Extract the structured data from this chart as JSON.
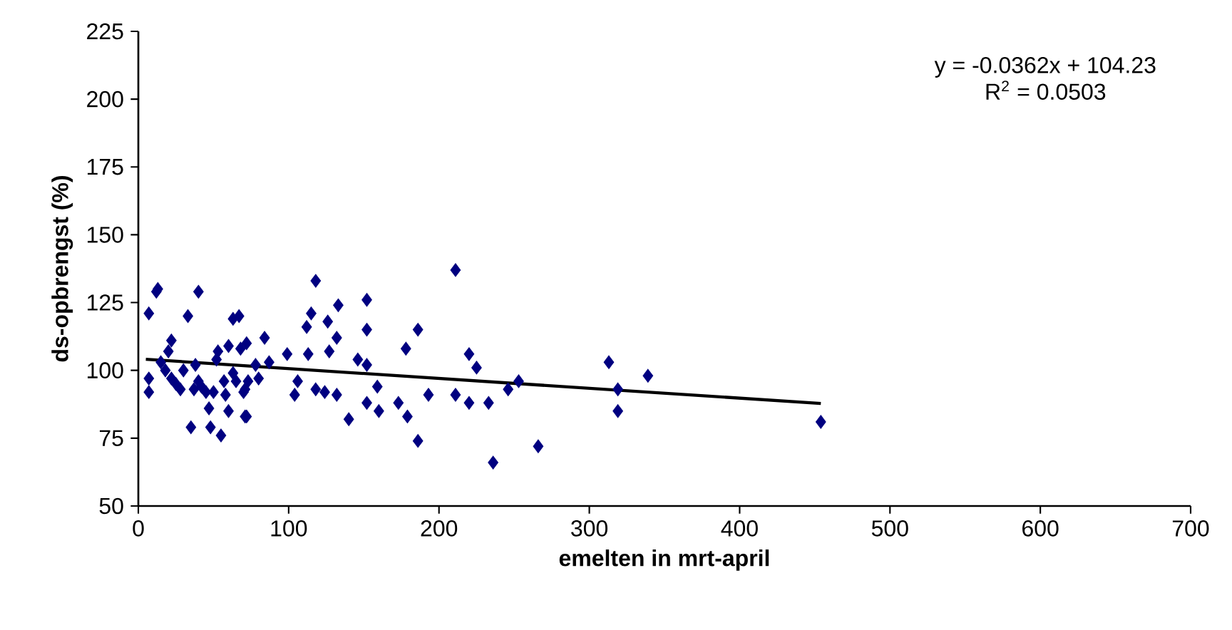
{
  "chart_data": {
    "type": "scatter",
    "xlabel": "emelten in mrt-april",
    "ylabel": "ds-opbrengst (%)",
    "xlim": [
      0,
      700
    ],
    "ylim": [
      50,
      225
    ],
    "xticks": [
      0,
      100,
      200,
      300,
      400,
      500,
      600,
      700
    ],
    "yticks": [
      50,
      75,
      100,
      125,
      150,
      175,
      200,
      225
    ],
    "grid": false,
    "marker": "diamond",
    "annotations": [
      "y = -0.0362x + 104.23",
      "R$^{2}$ = 0.0503"
    ],
    "series": [
      {
        "color": "#000080",
        "x": [
          7,
          7,
          7,
          12,
          13,
          15,
          18,
          20,
          22,
          22,
          25,
          28,
          30,
          33,
          35,
          37,
          38,
          40,
          40,
          42,
          45,
          47,
          48,
          50,
          52,
          53,
          55,
          57,
          58,
          60,
          60,
          63,
          63,
          65,
          67,
          68,
          70,
          72,
          72,
          73,
          78,
          80,
          118,
          133,
          152,
          115,
          126,
          112,
          152,
          186,
          84,
          132,
          99,
          113,
          127,
          178,
          146,
          152,
          87,
          106,
          118,
          124,
          132,
          104,
          159,
          71,
          152,
          160,
          173,
          193,
          179,
          140,
          186,
          71,
          211,
          220,
          225,
          253,
          246,
          211,
          220,
          233,
          236,
          266,
          313,
          339,
          319,
          319,
          454
        ],
        "values": [
          121,
          97,
          92,
          129,
          130,
          103,
          100,
          107,
          111,
          97,
          95,
          93,
          100,
          120,
          79,
          93,
          102,
          129,
          96,
          94,
          92,
          86,
          79,
          92,
          104,
          107,
          76,
          96,
          91,
          85,
          109,
          119,
          99,
          96,
          120,
          108,
          92,
          83,
          110,
          96,
          102,
          97,
          133,
          124,
          126,
          121,
          118,
          116,
          115,
          115,
          112,
          112,
          106,
          106,
          107,
          108,
          104,
          102,
          103,
          96,
          93,
          92,
          91,
          91,
          94,
          93,
          88,
          85,
          88,
          91,
          83,
          82,
          74,
          83,
          137,
          106,
          101,
          96,
          93,
          91,
          88,
          88,
          66,
          72,
          103,
          98,
          93,
          85,
          81
        ]
      },
      {
        "type": "line",
        "color": "#000000",
        "marker": "none",
        "line_style": "solid",
        "x": [
          5,
          454
        ],
        "values": [
          104.1,
          87.8
        ]
      }
    ]
  }
}
